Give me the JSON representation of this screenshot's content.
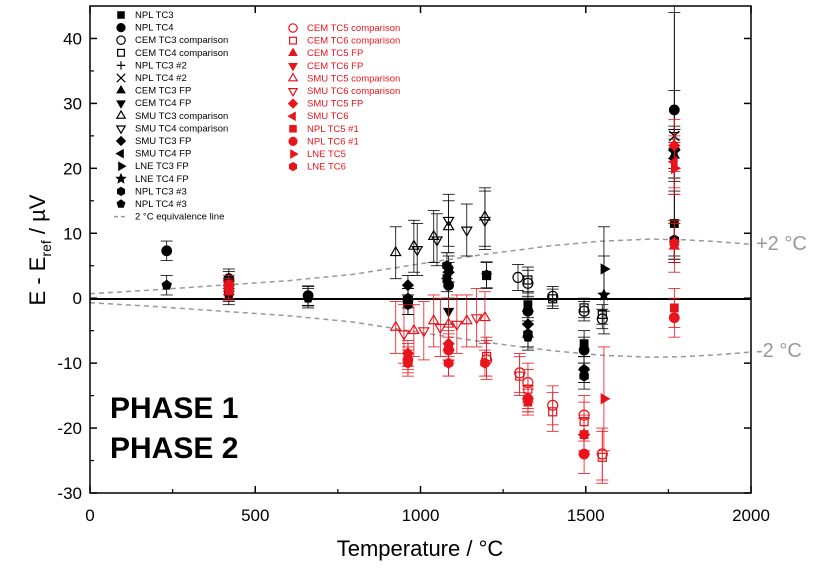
{
  "chart_data": {
    "type": "scatter",
    "xlabel": "Temperature / °C",
    "ylabel_main": "E - E",
    "ylabel_sub": "ref",
    "ylabel_tail": " / µV",
    "xlim": [
      0,
      2000
    ],
    "ylim": [
      -30,
      45
    ],
    "xticks": [
      0,
      500,
      1000,
      1500,
      2000
    ],
    "yticks": [
      -30,
      -20,
      -10,
      0,
      10,
      20,
      30,
      40
    ],
    "colors": {
      "phase1": "#000000",
      "phase2": "#e8141c",
      "equivalence": "#999999"
    },
    "phase_labels": [
      {
        "text": "PHASE 1",
        "color": "#000000"
      },
      {
        "text": "PHASE 2",
        "color": "#e8141c"
      }
    ],
    "equivalence": {
      "upper_label": "+2 °C",
      "lower_label": "-2 °C",
      "points": [
        [
          0,
          0.7
        ],
        [
          200,
          1.3
        ],
        [
          400,
          2.0
        ],
        [
          600,
          2.7
        ],
        [
          800,
          3.7
        ],
        [
          1000,
          5.3
        ],
        [
          1200,
          6.8
        ],
        [
          1400,
          8.1
        ],
        [
          1550,
          8.8
        ],
        [
          1700,
          9.1
        ],
        [
          1800,
          9.0
        ],
        [
          1900,
          8.7
        ],
        [
          2000,
          8.3
        ]
      ]
    },
    "series": [
      {
        "name": "NPL TC3",
        "color": "black",
        "marker": "square-filled",
        "points": [
          [
            420,
            2.6,
            1.5
          ],
          [
            1080,
            3.0,
            2.0
          ],
          [
            1325,
            -1.0,
            2.0
          ],
          [
            1495,
            -7.0,
            2.0
          ],
          [
            1768,
            11.5,
            5.0
          ]
        ]
      },
      {
        "name": "NPL TC4",
        "color": "black",
        "marker": "circle-filled",
        "points": [
          [
            232,
            7.3,
            1.5
          ],
          [
            420,
            3.0,
            1.5
          ],
          [
            660,
            0.4,
            1.5
          ],
          [
            962,
            -0.5,
            2.0
          ],
          [
            1085,
            2.0,
            2.0
          ],
          [
            1325,
            -2.0,
            2.0
          ],
          [
            1495,
            -8.0,
            2.0
          ],
          [
            1768,
            29.0,
            3.0
          ]
        ]
      },
      {
        "name": "CEM TC3 comparison",
        "color": "black",
        "marker": "circle-open",
        "points": [
          [
            1295,
            3.2,
            2.0
          ],
          [
            1325,
            2.3,
            2.0
          ],
          [
            1400,
            0.3,
            1.5
          ],
          [
            1495,
            -2.0,
            1.5
          ],
          [
            1550,
            -3.2,
            1.5
          ]
        ]
      },
      {
        "name": "CEM TC4 comparison",
        "color": "black",
        "marker": "square-open",
        "points": [
          [
            1200,
            3.5,
            2.0
          ],
          [
            1325,
            2.8,
            2.0
          ],
          [
            1400,
            -0.1,
            1.5
          ],
          [
            1495,
            -1.5,
            1.5
          ],
          [
            1550,
            -2.5,
            1.5
          ]
        ]
      },
      {
        "name": "NPL TC3 #2",
        "color": "black",
        "marker": "plus",
        "points": [
          [
            1768,
            25.5,
            20.0
          ]
        ]
      },
      {
        "name": "NPL TC4 #2",
        "color": "black",
        "marker": "cross",
        "points": [
          [
            1768,
            25.0,
            19.0
          ]
        ]
      },
      {
        "name": "CEM TC3 FP",
        "color": "black",
        "marker": "triangle-up-filled",
        "points": [
          [
            1768,
            22.0,
            4.0
          ]
        ]
      },
      {
        "name": "CEM TC4 FP",
        "color": "black",
        "marker": "triangle-down-filled",
        "points": [
          [
            1085,
            -2.0,
            2.0
          ]
        ]
      },
      {
        "name": "SMU TC3 comparison",
        "color": "black",
        "marker": "triangle-up-open",
        "points": [
          [
            925,
            7.0,
            4.0
          ],
          [
            980,
            8.0,
            4.0
          ],
          [
            1040,
            9.5,
            4.0
          ],
          [
            1085,
            11.0,
            4.0
          ],
          [
            1195,
            12.5,
            4.5
          ]
        ]
      },
      {
        "name": "SMU TC4 comparison",
        "color": "black",
        "marker": "triangle-down-open",
        "points": [
          [
            990,
            7.5,
            4.0
          ],
          [
            1050,
            9.0,
            4.0
          ],
          [
            1085,
            12.0,
            4.0
          ],
          [
            1140,
            10.5,
            4.0
          ],
          [
            1195,
            12.0,
            4.5
          ]
        ]
      },
      {
        "name": "SMU TC3 FP",
        "color": "black",
        "marker": "diamond-filled",
        "points": [
          [
            962,
            2.0,
            1.5
          ],
          [
            1085,
            4.0,
            1.5
          ],
          [
            1325,
            -4.0,
            2.0
          ],
          [
            1495,
            -11.0,
            2.0
          ],
          [
            1768,
            23.0,
            3.0
          ]
        ]
      },
      {
        "name": "SMU TC4 FP",
        "color": "black",
        "marker": "triangle-left-filled",
        "points": [
          [
            1768,
            21.5,
            3.0
          ]
        ]
      },
      {
        "name": "LNE TC3 FP",
        "color": "black",
        "marker": "triangle-right-filled",
        "points": [
          [
            1555,
            4.5,
            6.5
          ],
          [
            1768,
            20.0,
            4.0
          ]
        ]
      },
      {
        "name": "LNE TC4 FP",
        "color": "black",
        "marker": "star-filled",
        "points": [
          [
            1555,
            0.5,
            6.0
          ],
          [
            1768,
            22.5,
            4.0
          ]
        ]
      },
      {
        "name": "NPL TC3 #3",
        "color": "black",
        "marker": "hexagon-filled",
        "points": [
          [
            420,
            1.0,
            1.5
          ],
          [
            660,
            0.3,
            1.5
          ],
          [
            962,
            -1.0,
            1.5
          ],
          [
            1080,
            5.0,
            2.0
          ],
          [
            1325,
            -5.5,
            2.0
          ],
          [
            1495,
            -12.0,
            2.0
          ],
          [
            1768,
            9.0,
            3.0
          ]
        ]
      },
      {
        "name": "NPL TC4 #3",
        "color": "black",
        "marker": "pentagon-filled",
        "points": [
          [
            232,
            2.0,
            1.5
          ],
          [
            420,
            0.5,
            1.5
          ],
          [
            660,
            0.0,
            1.5
          ],
          [
            962,
            0.0,
            1.5
          ],
          [
            1085,
            4.5,
            2.0
          ],
          [
            1200,
            3.6,
            2.0
          ],
          [
            1325,
            -6.0,
            2.0
          ],
          [
            1495,
            -11.0,
            2.0
          ],
          [
            1768,
            8.5,
            3.0
          ]
        ]
      },
      {
        "name": "CEM TC5 comparison",
        "color": "red",
        "marker": "circle-open",
        "points": [
          [
            1200,
            -9.5,
            3.0
          ],
          [
            1300,
            -11.5,
            3.0
          ],
          [
            1325,
            -13.0,
            3.0
          ],
          [
            1400,
            -16.5,
            3.0
          ],
          [
            1495,
            -18.0,
            3.0
          ],
          [
            1550,
            -24.0,
            4.0
          ]
        ]
      },
      {
        "name": "CEM TC6 comparison",
        "color": "red",
        "marker": "square-open",
        "points": [
          [
            1200,
            -9.0,
            3.0
          ],
          [
            1300,
            -12.0,
            3.0
          ],
          [
            1325,
            -14.0,
            3.0
          ],
          [
            1400,
            -17.5,
            3.0
          ],
          [
            1495,
            -19.0,
            3.0
          ],
          [
            1550,
            -24.5,
            4.0
          ]
        ]
      },
      {
        "name": "CEM TC5 FP",
        "color": "red",
        "marker": "triangle-up-filled",
        "points": [
          [
            1768,
            8.0,
            4.0
          ]
        ]
      },
      {
        "name": "CEM TC6 FP",
        "color": "red",
        "marker": "triangle-down-filled",
        "points": [
          [
            1085,
            -10.0,
            2.0
          ]
        ]
      },
      {
        "name": "SMU TC5 comparison",
        "color": "red",
        "marker": "triangle-up-open",
        "points": [
          [
            925,
            -4.5,
            4.0
          ],
          [
            980,
            -5.0,
            4.0
          ],
          [
            1040,
            -3.5,
            4.0
          ],
          [
            1085,
            -4.0,
            4.0
          ],
          [
            1140,
            -3.5,
            4.0
          ],
          [
            1195,
            -3.0,
            4.0
          ]
        ]
      },
      {
        "name": "SMU TC6 comparison",
        "color": "red",
        "marker": "triangle-down-open",
        "points": [
          [
            950,
            -5.5,
            4.5
          ],
          [
            1010,
            -5.0,
            4.5
          ],
          [
            1060,
            -4.5,
            4.5
          ],
          [
            1110,
            -4.0,
            4.5
          ],
          [
            1170,
            -3.0,
            4.5
          ]
        ]
      },
      {
        "name": "SMU TC5 FP",
        "color": "red",
        "marker": "diamond-filled",
        "points": [
          [
            420,
            1.5,
            1.5
          ],
          [
            962,
            -8.5,
            2.0
          ],
          [
            1085,
            -7.0,
            2.0
          ],
          [
            1325,
            -15.5,
            2.0
          ],
          [
            1495,
            -21.0,
            2.5
          ],
          [
            1768,
            23.5,
            4.0
          ]
        ]
      },
      {
        "name": "SMU TC6",
        "color": "red",
        "marker": "triangle-left-filled",
        "points": [
          [
            1768,
            21.0,
            4.0
          ]
        ]
      },
      {
        "name": "NPL TC5 #1",
        "color": "red",
        "marker": "square-filled",
        "points": [
          [
            420,
            1.2,
            1.5
          ],
          [
            962,
            -9.0,
            2.0
          ],
          [
            1085,
            -7.5,
            2.0
          ],
          [
            1325,
            -16.0,
            2.0
          ],
          [
            1495,
            -21.0,
            3.0
          ],
          [
            1768,
            -1.5,
            3.0
          ]
        ]
      },
      {
        "name": "NPL TC6 #1",
        "color": "red",
        "marker": "circle-filled",
        "points": [
          [
            420,
            2.0,
            1.5
          ],
          [
            962,
            -9.5,
            2.0
          ],
          [
            1085,
            -8.0,
            2.0
          ],
          [
            1325,
            -15.5,
            2.0
          ],
          [
            1495,
            -24.0,
            3.0
          ],
          [
            1768,
            -3.0,
            3.0
          ]
        ]
      },
      {
        "name": "LNE TC5",
        "color": "red",
        "marker": "triangle-right-filled",
        "points": [
          [
            1555,
            -15.5,
            8.0
          ],
          [
            1768,
            20.0,
            4.0
          ]
        ]
      },
      {
        "name": "LNE TC6",
        "color": "red",
        "marker": "hexagon-filled",
        "points": [
          [
            962,
            -10.0,
            2.0
          ],
          [
            1085,
            -10.0,
            2.0
          ],
          [
            1195,
            -10.0,
            2.0
          ],
          [
            1768,
            8.5,
            3.0
          ]
        ]
      }
    ],
    "equivalence_series_name": "2 °C equivalence line"
  }
}
